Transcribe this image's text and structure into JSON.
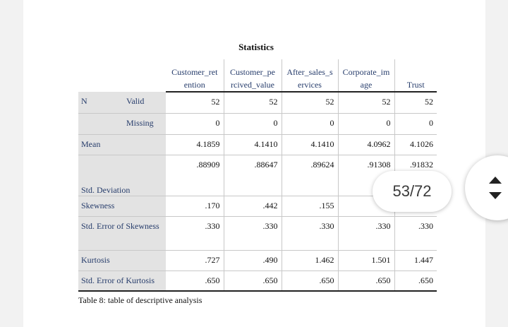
{
  "table": {
    "title": "Statistics",
    "columns": [
      "Customer_ret ention",
      "Customer_pe rcived_value",
      "After_sales_s ervices",
      "Corporate_im age",
      "Trust"
    ],
    "rows": [
      {
        "label": "N",
        "sublabel": "Valid",
        "values": [
          "52",
          "52",
          "52",
          "52",
          "52"
        ]
      },
      {
        "label": "",
        "sublabel": "Missing",
        "values": [
          "0",
          "0",
          "0",
          "0",
          "0"
        ]
      },
      {
        "label": "Mean",
        "sublabel": "",
        "values": [
          "4.1859",
          "4.1410",
          "4.1410",
          "4.0962",
          "4.1026"
        ]
      },
      {
        "label": "Std. Deviation",
        "sublabel": "",
        "values": [
          ".88909",
          ".88647",
          ".89624",
          ".91308",
          ".91832"
        ]
      },
      {
        "label": "Skewness",
        "sublabel": "",
        "values": [
          ".170",
          ".442",
          ".155",
          "",
          ""
        ]
      },
      {
        "label": "Std. Error of Skewness",
        "sublabel": "",
        "values": [
          ".330",
          ".330",
          ".330",
          ".330",
          ".330"
        ]
      },
      {
        "label": "Kurtosis",
        "sublabel": "",
        "values": [
          ".727",
          ".490",
          "1.462",
          "1.501",
          "1.447"
        ]
      },
      {
        "label": "Std. Error of Kurtosis",
        "sublabel": "",
        "values": [
          ".650",
          ".650",
          ".650",
          ".650",
          ".650"
        ]
      }
    ]
  },
  "caption": "Table 8: table of descriptive analysis",
  "viewer": {
    "page_indicator": "53/72",
    "scroll_up_icon": "chevron-up-icon",
    "scroll_down_icon": "chevron-down-icon"
  }
}
